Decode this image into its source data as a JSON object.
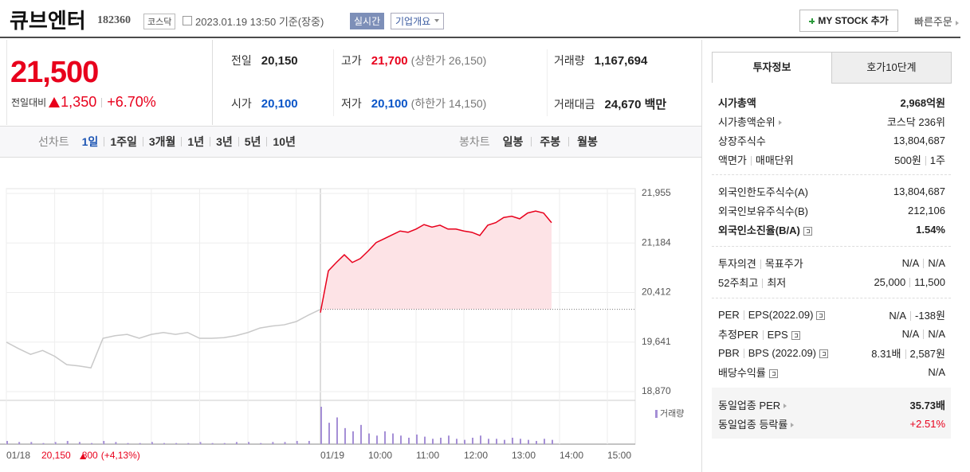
{
  "header": {
    "name": "큐브엔터",
    "code": "182360",
    "market": "코스닥",
    "time": "2023.01.19 13:50",
    "time_suffix": "기준(장중)",
    "realtime": "실시간",
    "overview": "기업개요",
    "mystock": "MY STOCK 추가",
    "quick_order": "빠른주문"
  },
  "price": {
    "current": "21,500",
    "change_label": "전일대비",
    "change": "1,350",
    "change_pct": "+6.70%"
  },
  "summary": [
    [
      {
        "label": "전일",
        "value": "20,150",
        "color": "#222"
      },
      {
        "label": "고가",
        "value": "21,700",
        "note": "(상한가 26,150)",
        "color": "#e8001c"
      },
      {
        "label": "거래량",
        "value": "1,167,694",
        "color": "#222"
      }
    ],
    [
      {
        "label": "시가",
        "value": "20,100",
        "color": "#0a55c8"
      },
      {
        "label": "저가",
        "value": "20,100",
        "note": "(하한가 14,150)",
        "color": "#0a55c8"
      },
      {
        "label": "거래대금",
        "value": "24,670 백만",
        "color": "#222"
      }
    ]
  ],
  "tabs": {
    "line_label": "선차트",
    "periods": [
      "1일",
      "1주일",
      "3개월",
      "1년",
      "3년",
      "5년",
      "10년"
    ],
    "active": 0,
    "candle_label": "봉차트",
    "candles": [
      "일봉",
      "주봉",
      "월봉"
    ]
  },
  "chart_data": {
    "type": "line",
    "ylim": [
      18870,
      21955
    ],
    "yticks": [
      {
        "value": 18870,
        "label": "18,870"
      },
      {
        "value": 19641,
        "label": "19,641"
      },
      {
        "value": 20412,
        "label": "20,412"
      },
      {
        "value": 21184,
        "label": "21,184"
      },
      {
        "value": 21955,
        "label": "21,955"
      }
    ],
    "x_labels": [
      "01/18",
      "01/19",
      "10:00",
      "11:00",
      "12:00",
      "13:00",
      "14:00",
      "15:00"
    ],
    "prev_close": 20150,
    "series": [
      {
        "color": "#c9c9c9",
        "values": [
          19640,
          19540,
          19450,
          19510,
          19420,
          19290,
          19270,
          19240,
          19700,
          19740,
          19760,
          19700,
          19760,
          19790,
          19760,
          19790,
          19700,
          19700,
          19710,
          19740,
          19790,
          19860,
          19890,
          19910,
          19960,
          20060,
          20150
        ]
      },
      {
        "color": "#e8001c",
        "values": [
          20100,
          20750,
          20880,
          21000,
          20880,
          20940,
          21060,
          21190,
          21250,
          21310,
          21370,
          21350,
          21400,
          21470,
          21430,
          21460,
          21400,
          21400,
          21370,
          21350,
          21300,
          21460,
          21500,
          21580,
          21600,
          21560,
          21650,
          21680,
          21650,
          21500
        ]
      }
    ],
    "volume_label": "거래량",
    "volume_color": "#a58fd6",
    "volume": [
      [
        3,
        2,
        2,
        1,
        2,
        3,
        2,
        1,
        3,
        2,
        1,
        1,
        2,
        1,
        1,
        1,
        2,
        1,
        1,
        2,
        2,
        1,
        2,
        2,
        3,
        3,
        4
      ],
      [
        35,
        20,
        25,
        15,
        12,
        18,
        10,
        8,
        12,
        10,
        8,
        6,
        9,
        7,
        5,
        6,
        8,
        5,
        4,
        6,
        8,
        5,
        5,
        4,
        6,
        5,
        4,
        3,
        5,
        4
      ]
    ],
    "footer": {
      "close": "20,150",
      "change": "800",
      "pct": "(+4,13%)"
    }
  },
  "info_tabs": [
    "투자정보",
    "호가10단계"
  ],
  "info": [
    {
      "rows": [
        {
          "label": [
            "시가총액"
          ],
          "value": [
            "2,968억원"
          ],
          "bold": true
        },
        {
          "label": [
            "시가총액순위"
          ],
          "arrow": true,
          "value": [
            "코스닥 236위"
          ]
        },
        {
          "label": [
            "상장주식수"
          ],
          "value": [
            "13,804,687"
          ]
        },
        {
          "label": [
            "액면가",
            "매매단위"
          ],
          "value": [
            "500원",
            "1주"
          ]
        }
      ]
    },
    {
      "rows": [
        {
          "label": [
            "외국인한도주식수(A)"
          ],
          "value": [
            "13,804,687"
          ]
        },
        {
          "label": [
            "외국인보유주식수(B)"
          ],
          "value": [
            "212,106"
          ]
        },
        {
          "label": [
            "외국인소진율(B/A)"
          ],
          "help": true,
          "value": [
            "1.54%"
          ],
          "bold": true
        }
      ]
    },
    {
      "rows": [
        {
          "label": [
            "투자의견",
            "목표주가"
          ],
          "value": [
            "N/A",
            "N/A"
          ]
        },
        {
          "label": [
            "52주최고",
            "최저"
          ],
          "value": [
            "25,000",
            "11,500"
          ]
        }
      ]
    },
    {
      "rows": [
        {
          "label": [
            "PER",
            "EPS(2022.09)"
          ],
          "help": true,
          "value": [
            "N/A",
            "-138원"
          ]
        },
        {
          "label": [
            "추정PER",
            "EPS"
          ],
          "help": true,
          "value": [
            "N/A",
            "N/A"
          ]
        },
        {
          "label": [
            "PBR",
            "BPS (2022.09)"
          ],
          "help": true,
          "value": [
            "8.31배",
            "2,587원"
          ]
        },
        {
          "label": [
            "배당수익률"
          ],
          "help": true,
          "value": [
            "N/A"
          ]
        }
      ]
    },
    {
      "shaded": true,
      "rows": [
        {
          "label": [
            "동일업종 PER"
          ],
          "arrow": true,
          "value": [
            "35.73배"
          ],
          "bold_value": true
        },
        {
          "label": [
            "동일업종 등락률"
          ],
          "arrow": true,
          "value": [
            "+2.51%"
          ],
          "color": "#e8001c"
        }
      ]
    }
  ]
}
